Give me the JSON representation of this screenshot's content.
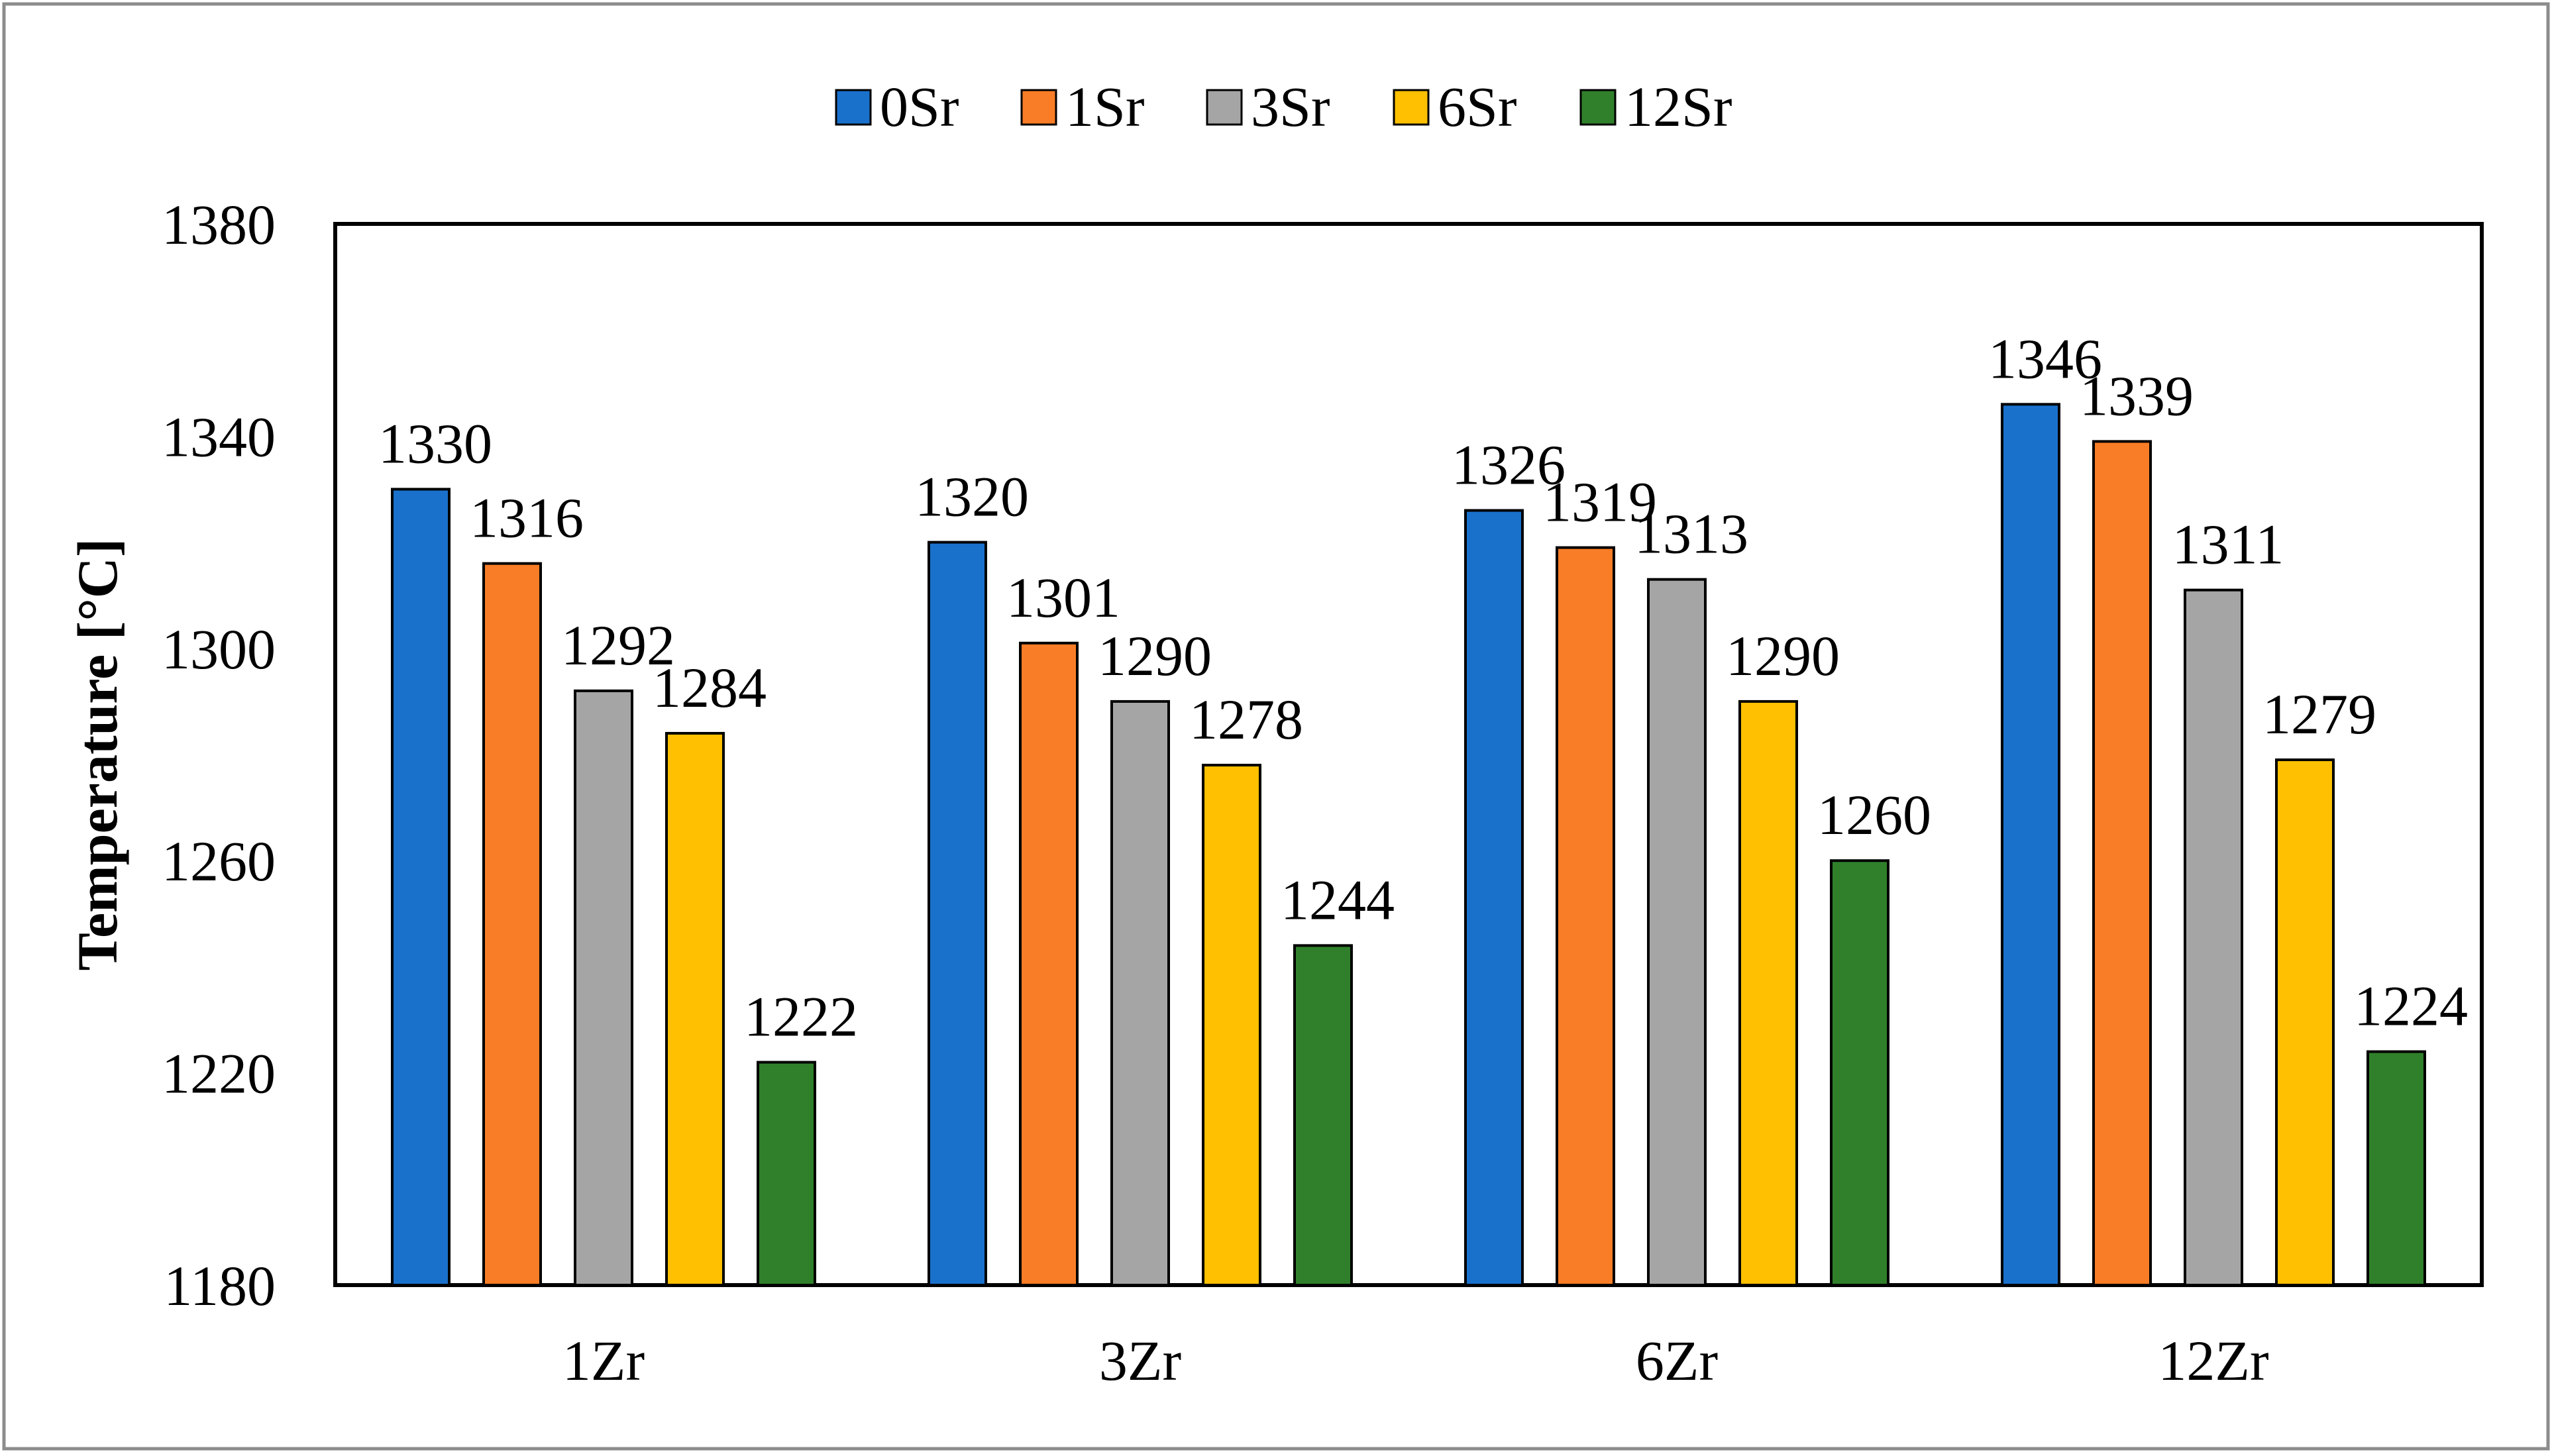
{
  "chart_data": {
    "type": "bar",
    "title": "",
    "xlabel": "",
    "ylabel": "Temperature [°C]",
    "ylim": [
      1180,
      1380
    ],
    "yticks": [
      1180,
      1220,
      1260,
      1300,
      1340,
      1380
    ],
    "grid": false,
    "legend_position": "top",
    "categories": [
      "1Zr",
      "3Zr",
      "6Zr",
      "12Zr"
    ],
    "series": [
      {
        "name": "0Sr",
        "color": "#1a71cc",
        "values": [
          1330,
          1320,
          1326,
          1346
        ]
      },
      {
        "name": "1Sr",
        "color": "#f97d26",
        "values": [
          1316,
          1301,
          1319,
          1339
        ]
      },
      {
        "name": "3Sr",
        "color": "#a5a5a5",
        "values": [
          1292,
          1290,
          1313,
          1311
        ]
      },
      {
        "name": "6Sr",
        "color": "#fec000",
        "values": [
          1284,
          1278,
          1290,
          1279
        ]
      },
      {
        "name": "12Sr",
        "color": "#30802b",
        "values": [
          1222,
          1244,
          1260,
          1224
        ]
      }
    ]
  }
}
